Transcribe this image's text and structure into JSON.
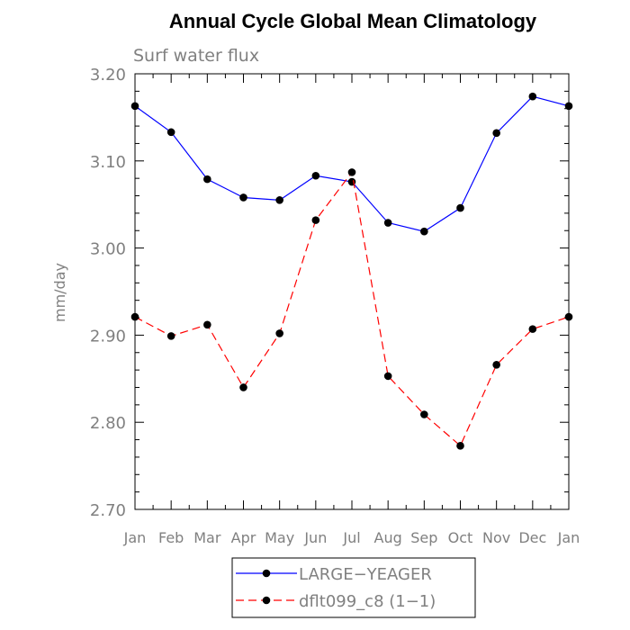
{
  "chart_data": {
    "type": "line",
    "title": "Annual Cycle Global Mean Climatology",
    "subtitle": "Surf water flux",
    "xlabel": "",
    "ylabel": "mm/day",
    "ylim": [
      2.7,
      3.2
    ],
    "yticks": [
      "2.70",
      "2.80",
      "2.90",
      "3.00",
      "3.10",
      "3.20"
    ],
    "categories": [
      "Jan",
      "Feb",
      "Mar",
      "Apr",
      "May",
      "Jun",
      "Jul",
      "Aug",
      "Sep",
      "Oct",
      "Nov",
      "Dec",
      "Jan"
    ],
    "series": [
      {
        "name": "LARGE−YEAGER",
        "color": "#0000ff",
        "style": "solid",
        "values": [
          3.163,
          3.133,
          3.079,
          3.058,
          3.055,
          3.083,
          3.076,
          3.029,
          3.019,
          3.046,
          3.132,
          3.174,
          3.163
        ]
      },
      {
        "name": "dflt099_c8 (1−1)",
        "color": "#ff0000",
        "style": "dashed",
        "values": [
          2.921,
          2.899,
          2.912,
          2.84,
          2.902,
          3.032,
          3.087,
          2.853,
          2.809,
          2.773,
          2.866,
          2.907,
          2.921
        ]
      }
    ],
    "grid": false,
    "legend_position": "bottom-center"
  }
}
